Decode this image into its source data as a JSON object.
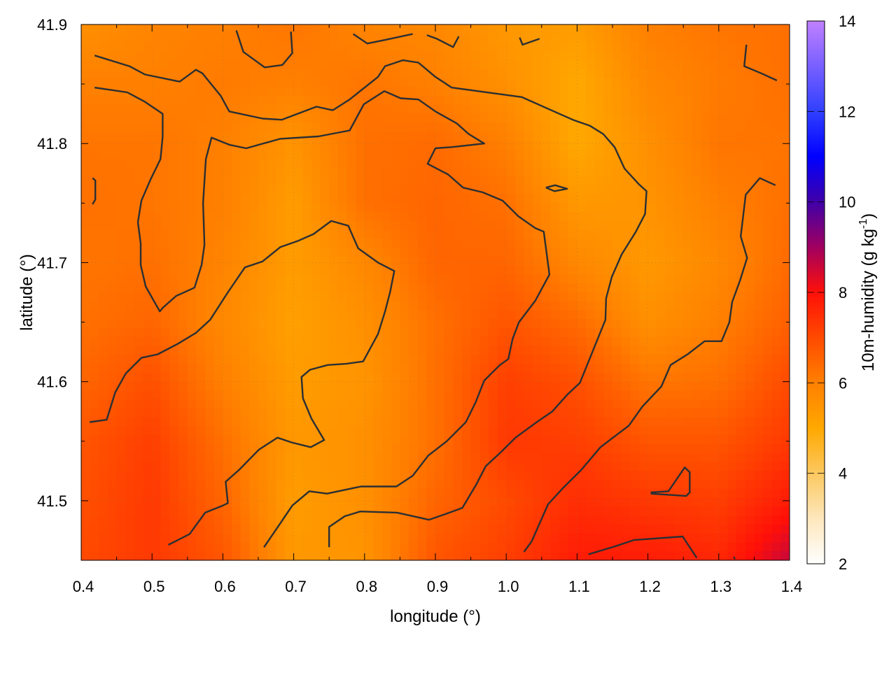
{
  "chart_data": {
    "type": "heatmap",
    "xlabel": "longitude (°)",
    "ylabel": "latitude (°)",
    "xlim": [
      0.4,
      1.4
    ],
    "ylim": [
      41.45,
      41.9
    ],
    "xticks": [
      "0.4",
      "0.5",
      "0.6",
      "0.7",
      "0.8",
      "0.9",
      "1.0",
      "1.1",
      "1.2",
      "1.3",
      "1.4"
    ],
    "yticks": [
      "41.5",
      "41.6",
      "41.7",
      "41.8",
      "41.9"
    ],
    "grid": true,
    "colorbar": {
      "label": "10m-humidity (g kg",
      "label_sup": "-1",
      "label_end": ")",
      "range": [
        2,
        14
      ],
      "ticks": [
        "2",
        "4",
        "6",
        "8",
        "10",
        "12",
        "14"
      ],
      "colormap": [
        {
          "value": 2,
          "color": "#ffffff"
        },
        {
          "value": 3,
          "color": "#fde7bc"
        },
        {
          "value": 4,
          "color": "#fcc860"
        },
        {
          "value": 5,
          "color": "#ffa800"
        },
        {
          "value": 6,
          "color": "#ff8000"
        },
        {
          "value": 7,
          "color": "#ff4a00"
        },
        {
          "value": 8,
          "color": "#ff1008"
        },
        {
          "value": 9,
          "color": "#a00060"
        },
        {
          "value": 10,
          "color": "#4000a8"
        },
        {
          "value": 11,
          "color": "#0000ff"
        },
        {
          "value": 12,
          "color": "#3040ff"
        },
        {
          "value": 14,
          "color": "#c080ff"
        }
      ]
    },
    "grid_lon": [
      0.4,
      0.5,
      0.6,
      0.7,
      0.8,
      0.9,
      1.0,
      1.1,
      1.2,
      1.3,
      1.4
    ],
    "grid_lat": [
      41.9,
      41.85,
      41.8,
      41.75,
      41.7,
      41.65,
      41.6,
      41.55,
      41.5,
      41.45
    ],
    "values": [
      [
        5.6,
        5.9,
        6.0,
        6.2,
        5.9,
        5.8,
        5.4,
        5.3,
        6.0,
        6.2,
        6.3
      ],
      [
        6.0,
        6.0,
        6.1,
        6.0,
        6.2,
        6.0,
        5.6,
        5.0,
        5.8,
        6.1,
        6.3
      ],
      [
        6.2,
        6.2,
        6.0,
        5.5,
        6.3,
        6.4,
        6.0,
        5.0,
        5.6,
        6.2,
        6.2
      ],
      [
        6.3,
        6.2,
        6.0,
        5.3,
        6.3,
        6.5,
        6.3,
        5.4,
        5.5,
        6.0,
        6.3
      ],
      [
        6.2,
        6.3,
        5.9,
        5.3,
        5.8,
        6.5,
        6.5,
        5.8,
        5.4,
        5.8,
        6.4
      ],
      [
        6.3,
        6.5,
        5.8,
        5.2,
        5.6,
        6.3,
        6.8,
        6.4,
        5.6,
        6.0,
        6.6
      ],
      [
        6.5,
        6.9,
        6.0,
        5.3,
        5.5,
        6.3,
        7.2,
        6.9,
        6.2,
        6.3,
        7.0
      ],
      [
        6.8,
        7.2,
        6.3,
        5.4,
        5.6,
        6.3,
        7.3,
        7.2,
        6.8,
        6.8,
        7.3
      ],
      [
        6.9,
        7.3,
        6.5,
        5.3,
        5.6,
        6.5,
        7.0,
        7.5,
        7.3,
        7.2,
        7.8
      ],
      [
        7.0,
        7.3,
        6.8,
        5.4,
        5.5,
        6.8,
        7.2,
        7.8,
        7.8,
        7.6,
        8.6
      ]
    ],
    "contours": [
      [
        [
          0.419,
          41.874
        ],
        [
          0.468,
          41.865
        ],
        [
          0.49,
          41.858
        ],
        [
          0.539,
          41.852
        ],
        [
          0.562,
          41.862
        ],
        [
          0.571,
          41.859
        ],
        [
          0.597,
          41.84
        ],
        [
          0.609,
          41.827
        ],
        [
          0.656,
          41.821
        ],
        [
          0.683,
          41.82
        ],
        [
          0.732,
          41.831
        ],
        [
          0.755,
          41.828
        ],
        [
          0.779,
          41.837
        ],
        [
          0.819,
          41.856
        ],
        [
          0.829,
          41.865
        ],
        [
          0.854,
          41.87
        ],
        [
          0.876,
          41.868
        ],
        [
          0.9,
          41.856
        ],
        [
          0.923,
          41.847
        ],
        [
          1.022,
          41.839
        ],
        [
          1.056,
          41.83
        ],
        [
          1.094,
          41.82
        ],
        [
          1.118,
          41.815
        ],
        [
          1.137,
          41.808
        ],
        [
          1.153,
          41.797
        ],
        [
          1.167,
          41.779
        ],
        [
          1.187,
          41.766
        ],
        [
          1.198,
          41.76
        ],
        [
          1.196,
          41.741
        ],
        [
          1.183,
          41.726
        ],
        [
          1.163,
          41.707
        ],
        [
          1.149,
          41.688
        ],
        [
          1.141,
          41.67
        ],
        [
          1.14,
          41.652
        ],
        [
          1.123,
          41.627
        ],
        [
          1.104,
          41.599
        ],
        [
          1.086,
          41.589
        ],
        [
          1.065,
          41.575
        ],
        [
          1.043,
          41.566
        ],
        [
          1.013,
          41.553
        ],
        [
          0.991,
          41.54
        ],
        [
          0.971,
          41.529
        ],
        [
          0.958,
          41.514
        ],
        [
          0.938,
          41.494
        ],
        [
          0.915,
          41.489
        ],
        [
          0.891,
          41.484
        ],
        [
          0.846,
          41.49
        ],
        [
          0.794,
          41.491
        ],
        [
          0.772,
          41.487
        ],
        [
          0.75,
          41.478
        ],
        [
          0.75,
          41.461
        ]
      ],
      [
        [
          0.419,
          41.847
        ],
        [
          0.465,
          41.843
        ],
        [
          0.49,
          41.835
        ],
        [
          0.515,
          41.825
        ],
        [
          0.515,
          41.806
        ],
        [
          0.512,
          41.787
        ],
        [
          0.498,
          41.77
        ],
        [
          0.485,
          41.752
        ],
        [
          0.48,
          41.734
        ],
        [
          0.484,
          41.716
        ],
        [
          0.484,
          41.698
        ],
        [
          0.491,
          41.68
        ],
        [
          0.511,
          41.659
        ],
        [
          0.515,
          41.662
        ],
        [
          0.534,
          41.672
        ],
        [
          0.56,
          41.679
        ],
        [
          0.57,
          41.698
        ],
        [
          0.574,
          41.715
        ],
        [
          0.572,
          41.75
        ],
        [
          0.576,
          41.787
        ],
        [
          0.584,
          41.805
        ],
        [
          0.609,
          41.799
        ],
        [
          0.633,
          41.796
        ],
        [
          0.681,
          41.804
        ],
        [
          0.735,
          41.806
        ],
        [
          0.779,
          41.811
        ],
        [
          0.799,
          41.833
        ],
        [
          0.828,
          41.844
        ],
        [
          0.851,
          41.838
        ],
        [
          0.876,
          41.837
        ],
        [
          0.9,
          41.827
        ],
        [
          0.93,
          41.817
        ],
        [
          0.947,
          41.808
        ],
        [
          0.969,
          41.8
        ],
        [
          0.923,
          41.797
        ],
        [
          0.9,
          41.796
        ],
        [
          0.889,
          41.783
        ],
        [
          0.918,
          41.774
        ],
        [
          0.939,
          41.763
        ],
        [
          0.967,
          41.759
        ],
        [
          0.995,
          41.752
        ],
        [
          1.017,
          41.739
        ],
        [
          1.041,
          41.729
        ],
        [
          1.053,
          41.726
        ],
        [
          1.061,
          41.69
        ],
        [
          1.041,
          41.668
        ],
        [
          1.018,
          41.65
        ],
        [
          1.009,
          41.636
        ],
        [
          1.003,
          41.619
        ],
        [
          0.991,
          41.614
        ],
        [
          0.969,
          41.601
        ],
        [
          0.957,
          41.583
        ],
        [
          0.943,
          41.566
        ],
        [
          0.916,
          41.55
        ],
        [
          0.89,
          41.538
        ],
        [
          0.868,
          41.521
        ],
        [
          0.845,
          41.512
        ],
        [
          0.795,
          41.512
        ],
        [
          0.747,
          41.506
        ],
        [
          0.722,
          41.508
        ],
        [
          0.698,
          41.496
        ],
        [
          0.681,
          41.481
        ],
        [
          0.658,
          41.461
        ]
      ],
      [
        [
          0.412,
          41.566
        ],
        [
          0.436,
          41.568
        ],
        [
          0.448,
          41.591
        ],
        [
          0.463,
          41.607
        ],
        [
          0.485,
          41.62
        ],
        [
          0.508,
          41.623
        ],
        [
          0.537,
          41.632
        ],
        [
          0.562,
          41.641
        ],
        [
          0.582,
          41.652
        ],
        [
          0.607,
          41.675
        ],
        [
          0.631,
          41.696
        ],
        [
          0.656,
          41.701
        ],
        [
          0.681,
          41.713
        ],
        [
          0.705,
          41.718
        ],
        [
          0.728,
          41.724
        ],
        [
          0.753,
          41.735
        ],
        [
          0.777,
          41.731
        ],
        [
          0.791,
          41.712
        ],
        [
          0.819,
          41.7
        ],
        [
          0.842,
          41.693
        ],
        [
          0.836,
          41.675
        ],
        [
          0.829,
          41.659
        ],
        [
          0.819,
          41.64
        ],
        [
          0.798,
          41.617
        ],
        [
          0.774,
          41.615
        ],
        [
          0.748,
          41.614
        ],
        [
          0.723,
          41.61
        ],
        [
          0.711,
          41.604
        ],
        [
          0.713,
          41.586
        ],
        [
          0.725,
          41.569
        ],
        [
          0.743,
          41.551
        ],
        [
          0.724,
          41.545
        ],
        [
          0.697,
          41.549
        ],
        [
          0.677,
          41.553
        ],
        [
          0.651,
          41.543
        ],
        [
          0.623,
          41.526
        ],
        [
          0.604,
          41.516
        ],
        [
          0.607,
          41.498
        ],
        [
          0.6,
          41.496
        ],
        [
          0.575,
          41.49
        ],
        [
          0.553,
          41.472
        ],
        [
          0.523,
          41.463
        ]
      ],
      [
        [
          1.025,
          41.457
        ],
        [
          1.036,
          41.466
        ],
        [
          1.059,
          41.497
        ],
        [
          1.079,
          41.51
        ],
        [
          1.106,
          41.526
        ],
        [
          1.133,
          41.545
        ],
        [
          1.155,
          41.555
        ],
        [
          1.173,
          41.563
        ],
        [
          1.192,
          41.579
        ],
        [
          1.219,
          41.596
        ],
        [
          1.232,
          41.614
        ],
        [
          1.256,
          41.623
        ],
        [
          1.28,
          41.634
        ],
        [
          1.304,
          41.634
        ],
        [
          1.315,
          41.65
        ],
        [
          1.319,
          41.667
        ],
        [
          1.33,
          41.685
        ],
        [
          1.34,
          41.704
        ],
        [
          1.331,
          41.722
        ],
        [
          1.338,
          41.757
        ],
        [
          1.358,
          41.771
        ],
        [
          1.38,
          41.765
        ]
      ],
      [
        [
          1.116,
          41.455
        ],
        [
          1.155,
          41.462
        ],
        [
          1.18,
          41.467
        ],
        [
          1.249,
          41.47
        ],
        [
          1.269,
          41.452
        ]
      ],
      [
        [
          1.204,
          41.507
        ],
        [
          1.229,
          41.508
        ],
        [
          1.252,
          41.528
        ],
        [
          1.259,
          41.524
        ],
        [
          1.259,
          41.507
        ],
        [
          1.254,
          41.504
        ],
        [
          1.204,
          41.506
        ]
      ],
      [
        [
          1.056,
          41.763
        ],
        [
          1.069,
          41.765
        ],
        [
          1.086,
          41.762
        ],
        [
          1.068,
          41.76
        ],
        [
          1.056,
          41.763
        ]
      ],
      [
        [
          0.619,
          41.895
        ],
        [
          0.629,
          41.877
        ],
        [
          0.659,
          41.864
        ],
        [
          0.684,
          41.866
        ],
        [
          0.698,
          41.876
        ],
        [
          0.696,
          41.894
        ]
      ],
      [
        [
          0.784,
          41.892
        ],
        [
          0.804,
          41.884
        ],
        [
          0.829,
          41.887
        ],
        [
          0.868,
          41.892
        ]
      ],
      [
        [
          0.888,
          41.891
        ],
        [
          0.902,
          41.888
        ],
        [
          0.925,
          41.881
        ],
        [
          0.933,
          41.89
        ]
      ],
      [
        [
          1.019,
          41.889
        ],
        [
          1.023,
          41.883
        ],
        [
          1.047,
          41.888
        ]
      ],
      [
        [
          1.339,
          41.883
        ],
        [
          1.336,
          41.865
        ],
        [
          1.36,
          41.859
        ],
        [
          1.382,
          41.853
        ]
      ],
      [
        [
          0.416,
          41.771
        ],
        [
          0.42,
          41.769
        ],
        [
          0.42,
          41.753
        ],
        [
          0.416,
          41.749
        ]
      ],
      [
        [
          1.321,
          41.453
        ],
        [
          1.323,
          41.451
        ]
      ]
    ],
    "contour_color": "#2b2f33"
  }
}
